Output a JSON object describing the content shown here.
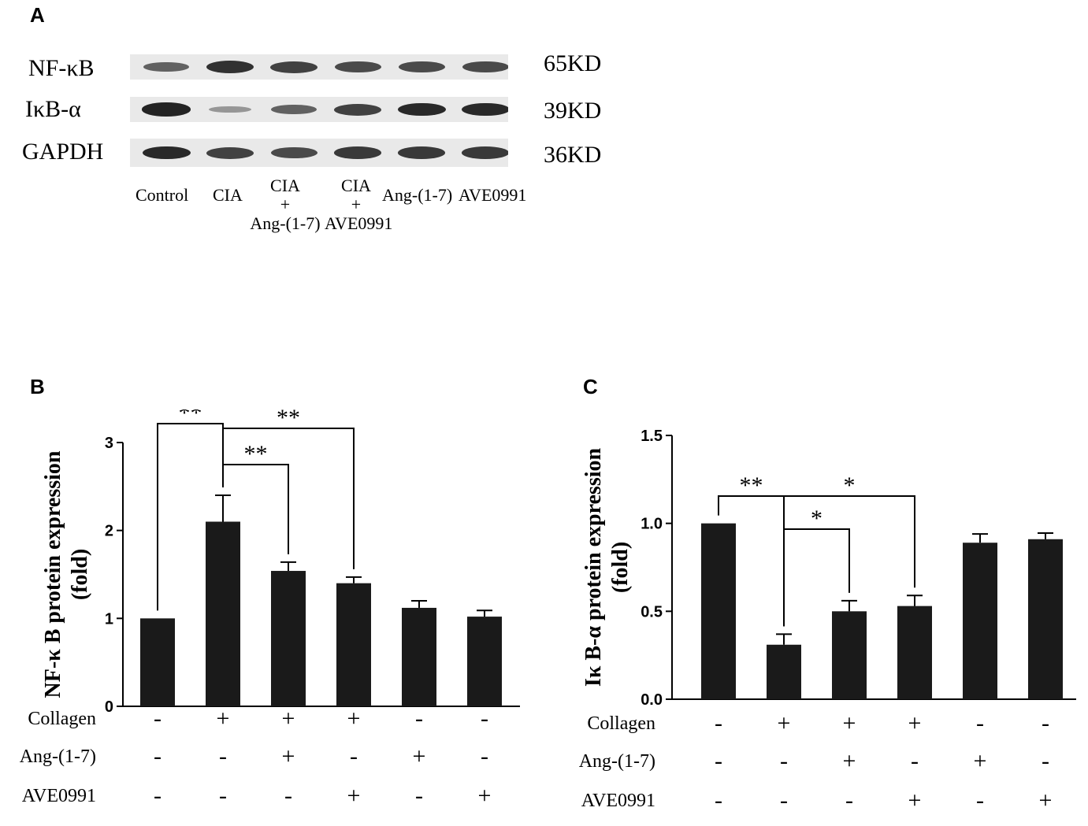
{
  "panel_a": {
    "letter": "A",
    "rows": [
      {
        "label": "NF-κB",
        "kd": "65KD",
        "intensity": [
          0.55,
          0.85,
          0.75,
          0.7,
          0.7,
          0.7
        ]
      },
      {
        "label": "IκB-α",
        "kd": "39KD",
        "intensity": [
          0.95,
          0.2,
          0.55,
          0.75,
          0.9,
          0.9
        ]
      },
      {
        "label": "GAPDH",
        "kd": "36KD",
        "intensity": [
          0.9,
          0.75,
          0.7,
          0.8,
          0.8,
          0.8
        ]
      }
    ],
    "lanes": [
      [
        "Control"
      ],
      [
        "CIA"
      ],
      [
        "CIA",
        "+",
        "Ang-(1-7)"
      ],
      [
        "CIA",
        "+",
        "AVE0991"
      ],
      [
        "Ang-(1-7)"
      ],
      [
        "AVE0991"
      ]
    ]
  },
  "chart_data": [
    {
      "letter": "B",
      "type": "bar",
      "ylabel_line1": "NF-κ B protein expression",
      "ylabel_line2": "(fold)",
      "ylim": [
        0,
        3
      ],
      "yticks": [
        "0",
        "1",
        "2",
        "3"
      ],
      "values": [
        1.0,
        2.1,
        1.54,
        1.4,
        1.12,
        1.02
      ],
      "errors": [
        0,
        0.3,
        0.1,
        0.07,
        0.08,
        0.07
      ],
      "color": "#1a1a1a",
      "significance": [
        {
          "from": 0,
          "to": 1,
          "label": "**"
        },
        {
          "from": 1,
          "to": 2,
          "label": "**"
        },
        {
          "from": 1,
          "to": 3,
          "label": "**"
        }
      ],
      "conditions": [
        {
          "name": "Collagen",
          "signs": [
            "-",
            "+",
            "+",
            "+",
            "-",
            "-"
          ]
        },
        {
          "name": "Ang-(1-7)",
          "signs": [
            "-",
            "-",
            "+",
            "-",
            "+",
            "-"
          ]
        },
        {
          "name": "AVE0991",
          "signs": [
            "-",
            "-",
            "-",
            "+",
            "-",
            "+"
          ]
        }
      ]
    },
    {
      "letter": "C",
      "type": "bar",
      "ylabel_line1": "Iκ B-α  protein expression",
      "ylabel_line2": "(fold)",
      "ylim": [
        0,
        1.5
      ],
      "yticks": [
        "0.0",
        "0.5",
        "1.0",
        "1.5"
      ],
      "values": [
        1.0,
        0.31,
        0.5,
        0.53,
        0.89,
        0.91
      ],
      "errors": [
        0,
        0.06,
        0.06,
        0.06,
        0.05,
        0.035
      ],
      "color": "#1a1a1a",
      "significance": [
        {
          "from": 0,
          "to": 1,
          "label": "**"
        },
        {
          "from": 1,
          "to": 2,
          "label": "*"
        },
        {
          "from": 1,
          "to": 3,
          "label": "*"
        }
      ],
      "conditions": [
        {
          "name": "Collagen",
          "signs": [
            "-",
            "+",
            "+",
            "+",
            "-",
            "-"
          ]
        },
        {
          "name": "Ang-(1-7)",
          "signs": [
            "-",
            "-",
            "+",
            "-",
            "+",
            "-"
          ]
        },
        {
          "name": "AVE0991",
          "signs": [
            "-",
            "-",
            "-",
            "+",
            "-",
            "+"
          ]
        }
      ]
    }
  ]
}
